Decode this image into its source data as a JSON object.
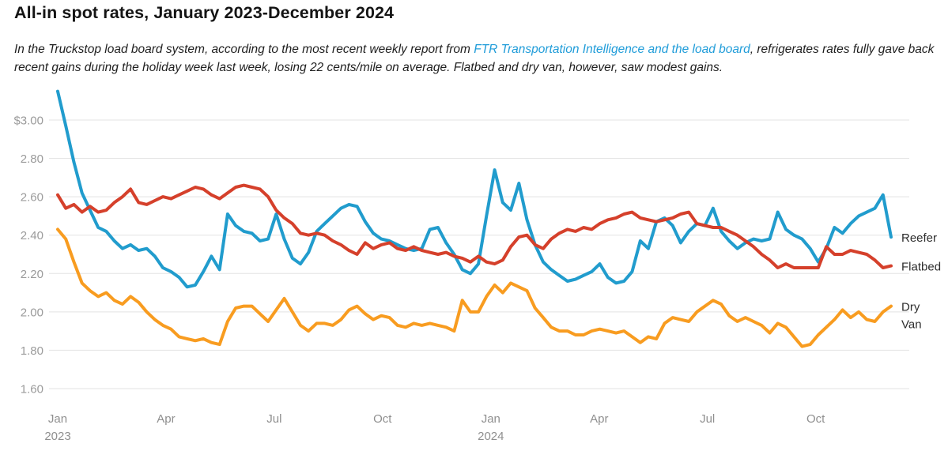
{
  "header": {
    "title": "All-in spot rates, January 2023-December 2024",
    "subtitle_pre": "In the Truckstop load board system, according to the most recent weekly report from ",
    "subtitle_link": "FTR Transportation Intelligence and the load board",
    "subtitle_post": ", refrigerates rates fully gave back recent gains during the holiday week last week, losing 22 cents/mile on average. Flatbed and dry van, however, saw modest gains."
  },
  "colors": {
    "reefer_blue": "#219ccd",
    "flatbed_red": "#d5402b",
    "dryvan_orange": "#f89c20",
    "link_blue": "#1f9cd9",
    "gridline": "#e3e3e3",
    "axis_text": "#9b9b9b"
  },
  "chart_data": {
    "type": "line",
    "title": "All-in spot rates, January 2023-December 2024",
    "x_unit": "weekly",
    "x_range": "Jan 2023 - Dec 2024",
    "ylim": [
      1.55,
      3.16
    ],
    "grid": "horizontal",
    "legend_position": "right-of-lines",
    "y_ticks": [
      {
        "label": "$3.00",
        "value": 3.0
      },
      {
        "label": "2.80",
        "value": 2.8
      },
      {
        "label": "2.60",
        "value": 2.6
      },
      {
        "label": "2.40",
        "value": 2.4
      },
      {
        "label": "2.20",
        "value": 2.2
      },
      {
        "label": "2.00",
        "value": 2.0
      },
      {
        "label": "1.80",
        "value": 1.8
      },
      {
        "label": "1.60",
        "value": 1.6
      }
    ],
    "x_ticks": [
      {
        "label": "Jan",
        "sub": "2023",
        "month": 0
      },
      {
        "label": "Apr",
        "month": 3
      },
      {
        "label": "Jul",
        "month": 6
      },
      {
        "label": "Oct",
        "month": 9
      },
      {
        "label": "Jan",
        "sub": "2024",
        "month": 12
      },
      {
        "label": "Apr",
        "month": 15
      },
      {
        "label": "Jul",
        "month": 18
      },
      {
        "label": "Oct",
        "month": 21
      }
    ],
    "series": [
      {
        "name": "Reefer",
        "legend_lines": [
          "Reefer"
        ],
        "color": "#219ccd",
        "values": [
          3.15,
          2.97,
          2.78,
          2.62,
          2.53,
          2.44,
          2.42,
          2.37,
          2.33,
          2.35,
          2.32,
          2.33,
          2.29,
          2.23,
          2.21,
          2.18,
          2.13,
          2.14,
          2.21,
          2.29,
          2.22,
          2.51,
          2.45,
          2.42,
          2.41,
          2.37,
          2.38,
          2.51,
          2.38,
          2.28,
          2.25,
          2.31,
          2.42,
          2.46,
          2.5,
          2.54,
          2.56,
          2.55,
          2.47,
          2.41,
          2.38,
          2.37,
          2.35,
          2.33,
          2.32,
          2.33,
          2.43,
          2.44,
          2.36,
          2.3,
          2.22,
          2.2,
          2.25,
          2.5,
          2.74,
          2.57,
          2.53,
          2.67,
          2.48,
          2.35,
          2.26,
          2.22,
          2.19,
          2.16,
          2.17,
          2.19,
          2.21,
          2.25,
          2.18,
          2.15,
          2.16,
          2.21,
          2.37,
          2.33,
          2.47,
          2.49,
          2.45,
          2.36,
          2.42,
          2.46,
          2.45,
          2.54,
          2.42,
          2.37,
          2.33,
          2.36,
          2.38,
          2.37,
          2.38,
          2.52,
          2.43,
          2.4,
          2.38,
          2.33,
          2.26,
          2.33,
          2.44,
          2.41,
          2.46,
          2.5,
          2.52,
          2.54,
          2.61,
          2.39
        ]
      },
      {
        "name": "Flatbed",
        "legend_lines": [
          "Flatbed"
        ],
        "color": "#d5402b",
        "values": [
          2.61,
          2.54,
          2.56,
          2.52,
          2.55,
          2.52,
          2.53,
          2.57,
          2.6,
          2.64,
          2.57,
          2.56,
          2.58,
          2.6,
          2.59,
          2.61,
          2.63,
          2.65,
          2.64,
          2.61,
          2.59,
          2.62,
          2.65,
          2.66,
          2.65,
          2.64,
          2.6,
          2.53,
          2.49,
          2.46,
          2.41,
          2.4,
          2.41,
          2.4,
          2.37,
          2.35,
          2.32,
          2.3,
          2.36,
          2.33,
          2.35,
          2.36,
          2.33,
          2.32,
          2.34,
          2.32,
          2.31,
          2.3,
          2.31,
          2.29,
          2.28,
          2.26,
          2.29,
          2.26,
          2.25,
          2.27,
          2.34,
          2.39,
          2.4,
          2.35,
          2.33,
          2.38,
          2.41,
          2.43,
          2.42,
          2.44,
          2.43,
          2.46,
          2.48,
          2.49,
          2.51,
          2.52,
          2.49,
          2.48,
          2.47,
          2.48,
          2.49,
          2.51,
          2.52,
          2.46,
          2.45,
          2.44,
          2.44,
          2.42,
          2.4,
          2.37,
          2.34,
          2.3,
          2.27,
          2.23,
          2.25,
          2.23,
          2.23,
          2.23,
          2.23,
          2.34,
          2.3,
          2.3,
          2.32,
          2.31,
          2.3,
          2.27,
          2.23,
          2.24
        ]
      },
      {
        "name": "Dry Van",
        "legend_lines": [
          "Dry",
          "Van"
        ],
        "color": "#f89c20",
        "values": [
          2.43,
          2.38,
          2.26,
          2.15,
          2.11,
          2.08,
          2.1,
          2.06,
          2.04,
          2.08,
          2.05,
          2.0,
          1.96,
          1.93,
          1.91,
          1.87,
          1.86,
          1.85,
          1.86,
          1.84,
          1.83,
          1.95,
          2.02,
          2.03,
          2.03,
          1.99,
          1.95,
          2.01,
          2.07,
          2.0,
          1.93,
          1.9,
          1.94,
          1.94,
          1.93,
          1.96,
          2.01,
          2.03,
          1.99,
          1.96,
          1.98,
          1.97,
          1.93,
          1.92,
          1.94,
          1.93,
          1.94,
          1.93,
          1.92,
          1.9,
          2.06,
          2.0,
          2.0,
          2.08,
          2.14,
          2.1,
          2.15,
          2.13,
          2.11,
          2.02,
          1.97,
          1.92,
          1.9,
          1.9,
          1.88,
          1.88,
          1.9,
          1.91,
          1.9,
          1.89,
          1.9,
          1.87,
          1.84,
          1.87,
          1.86,
          1.94,
          1.97,
          1.96,
          1.95,
          2.0,
          2.03,
          2.06,
          2.04,
          1.98,
          1.95,
          1.97,
          1.95,
          1.93,
          1.89,
          1.94,
          1.92,
          1.87,
          1.82,
          1.83,
          1.88,
          1.92,
          1.96,
          2.01,
          1.97,
          2.0,
          1.96,
          1.95,
          2.0,
          2.03
        ]
      }
    ]
  }
}
